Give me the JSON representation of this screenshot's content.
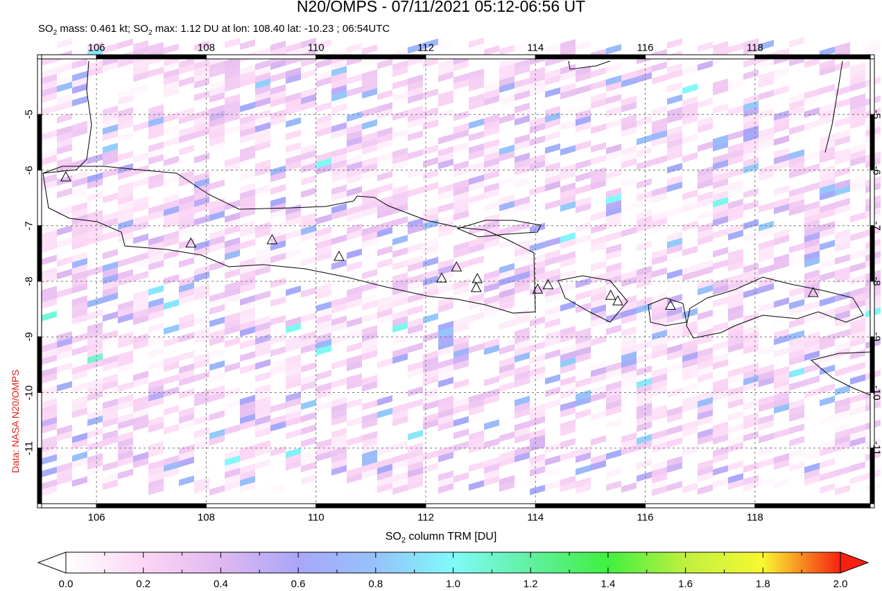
{
  "title": "N20/OMPS - 07/11/2021 05:12-06:56 UT",
  "subtitle": {
    "so2a": "SO",
    "suba": "2",
    "mass": " mass: 0.461 kt; ",
    "so2b": "SO",
    "subb": "2",
    "rest": " max: 1.12 DU at lon: 108.40 lat: -10.23 ; 06:54UTC"
  },
  "map": {
    "lon_range": [
      105,
      120.1
    ],
    "lat_range": [
      -12,
      -4
    ],
    "lon_ticks": [
      "106",
      "108",
      "110",
      "112",
      "114",
      "116",
      "118"
    ],
    "lat_ticks": [
      "-5",
      "-6",
      "-7",
      "-8",
      "-9",
      "-10",
      "-11"
    ],
    "max_point": {
      "lon": 108.4,
      "lat": -10.23,
      "value": 1.12
    },
    "volcanoes": [
      [
        105.44,
        -6.12
      ],
      [
        107.72,
        -7.31
      ],
      [
        109.2,
        -7.25
      ],
      [
        110.42,
        -7.55
      ],
      [
        112.29,
        -7.94
      ],
      [
        112.56,
        -7.74
      ],
      [
        112.94,
        -7.95
      ],
      [
        112.92,
        -8.11
      ],
      [
        114.04,
        -8.14
      ],
      [
        114.23,
        -8.06
      ],
      [
        115.37,
        -8.25
      ],
      [
        115.5,
        -8.35
      ],
      [
        116.46,
        -8.43
      ],
      [
        119.06,
        -8.2
      ]
    ]
  },
  "side_label": "Data: NASA N20/OMPS",
  "colorbar": {
    "label_a": "SO",
    "label_sub": "2",
    "label_b": " column TRM [DU]",
    "ticks": [
      "0.0",
      "0.2",
      "0.4",
      "0.6",
      "0.8",
      "1.0",
      "1.2",
      "1.4",
      "1.6",
      "1.8",
      "2.0"
    ],
    "range": [
      0,
      2
    ],
    "colors": [
      "#ffffff",
      "#fcd6f5",
      "#e0b8f0",
      "#a9a6fa",
      "#96c2fa",
      "#80fafa",
      "#60f0a0",
      "#40f040",
      "#c0f040",
      "#f8f830",
      "#f82010"
    ]
  }
}
